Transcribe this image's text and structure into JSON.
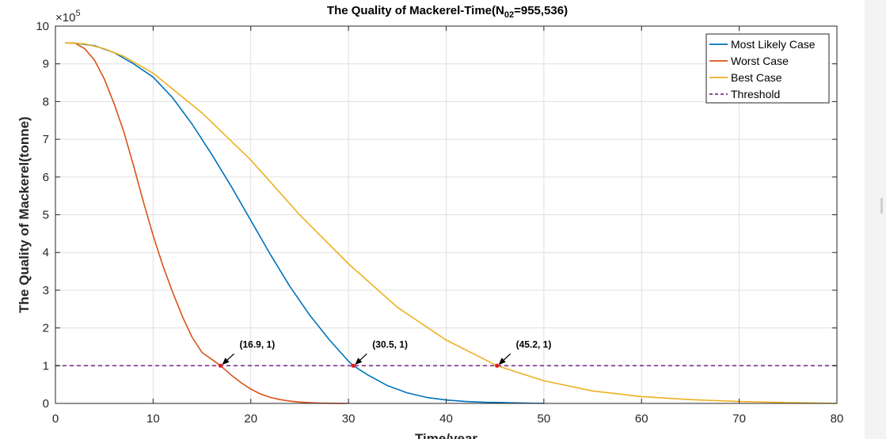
{
  "chart_data": {
    "type": "line",
    "title_main": "The Quality of Mackerel-Time(N",
    "title_sub": "02",
    "title_end": "=955,536)",
    "xlabel": "Time/year",
    "ylabel": "The Quality of Mackerel(tonne)",
    "exponent_base": "×10",
    "exponent_power": "5",
    "xlim": [
      0,
      80
    ],
    "ylim": [
      0,
      10
    ],
    "y_scale_factor": 100000,
    "xticks": [
      0,
      10,
      20,
      30,
      40,
      50,
      60,
      70,
      80
    ],
    "yticks": [
      0,
      1,
      2,
      3,
      4,
      5,
      6,
      7,
      8,
      9,
      10
    ],
    "grid": true,
    "legend_position": "top-right",
    "series": [
      {
        "name": "Most Likely Case",
        "color": "#0072BD",
        "dashed": false,
        "x": [
          1,
          2,
          4,
          6,
          8,
          10,
          12,
          14,
          16,
          18,
          20,
          22,
          24,
          26,
          28,
          30,
          30.5,
          32,
          34,
          36,
          38,
          40,
          42,
          44,
          46,
          48,
          50
        ],
        "y": [
          9.555,
          9.55,
          9.48,
          9.3,
          9.0,
          8.65,
          8.1,
          7.4,
          6.6,
          5.75,
          4.85,
          3.95,
          3.1,
          2.35,
          1.7,
          1.12,
          1.0,
          0.75,
          0.47,
          0.28,
          0.16,
          0.09,
          0.05,
          0.03,
          0.02,
          0.01,
          0.0
        ]
      },
      {
        "name": "Worst Case",
        "color": "#D95319",
        "dashed": false,
        "x": [
          1,
          2,
          3,
          4,
          5,
          6,
          7,
          8,
          9,
          10,
          11,
          12,
          13,
          14,
          15,
          16,
          16.9,
          18,
          19,
          20,
          21,
          22,
          23,
          24,
          25,
          26,
          27,
          28,
          29,
          30
        ],
        "y": [
          9.555,
          9.55,
          9.4,
          9.1,
          8.6,
          7.95,
          7.2,
          6.3,
          5.35,
          4.45,
          3.65,
          2.95,
          2.3,
          1.75,
          1.35,
          1.17,
          1.0,
          0.75,
          0.55,
          0.38,
          0.25,
          0.16,
          0.1,
          0.06,
          0.035,
          0.02,
          0.01,
          0.005,
          0.002,
          0.0
        ]
      },
      {
        "name": "Best Case",
        "color": "#EDB120",
        "dashed": false,
        "x": [
          1,
          3,
          5,
          7,
          10,
          15,
          20,
          25,
          30,
          35,
          40,
          45.2,
          50,
          55,
          60,
          65,
          70,
          75,
          80
        ],
        "y": [
          9.555,
          9.53,
          9.4,
          9.2,
          8.75,
          7.7,
          6.45,
          5.0,
          3.7,
          2.55,
          1.68,
          1.0,
          0.6,
          0.33,
          0.18,
          0.1,
          0.05,
          0.02,
          0.0
        ]
      },
      {
        "name": "Threshold",
        "color": "#7E2F8E",
        "dashed": true,
        "x": [
          0,
          80
        ],
        "y": [
          1,
          1
        ]
      }
    ],
    "annotations": [
      {
        "label": "(16.9, 1)",
        "x": 16.9,
        "y": 1
      },
      {
        "label": "(30.5, 1)",
        "x": 30.5,
        "y": 1
      },
      {
        "label": "(45.2, 1)",
        "x": 45.2,
        "y": 1
      }
    ]
  }
}
